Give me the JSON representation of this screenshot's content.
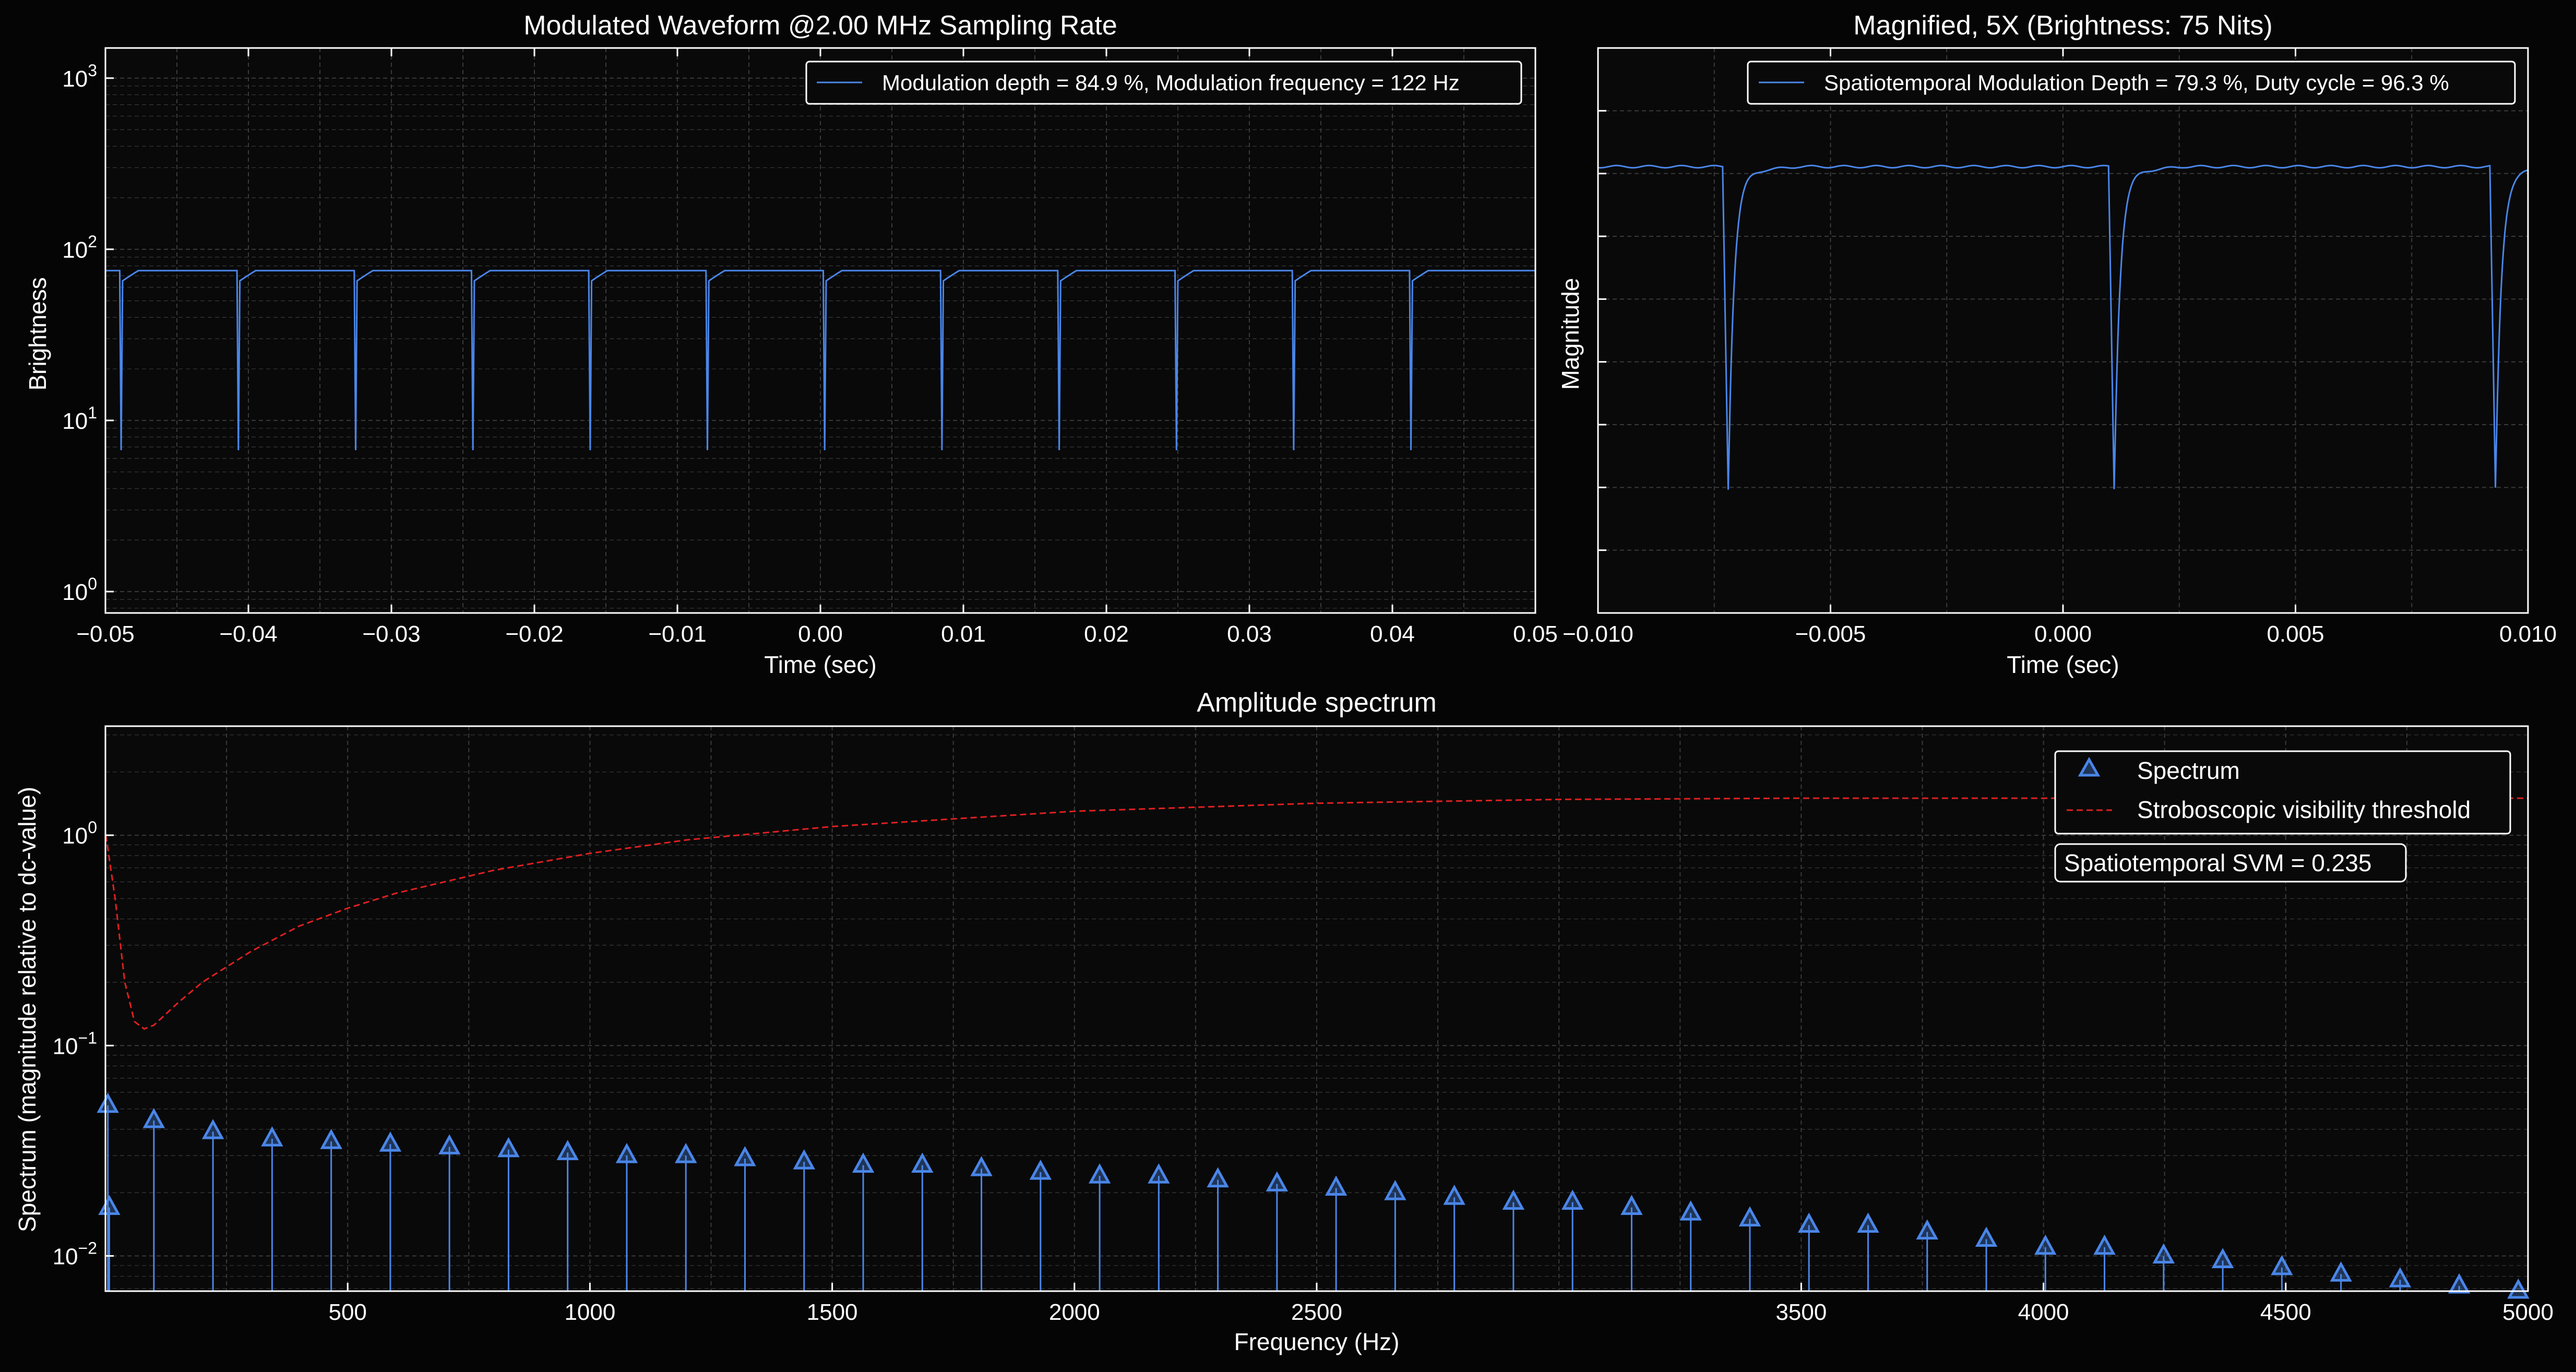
{
  "colors": {
    "background": "#050505",
    "axes_face": "#090909",
    "foreground": "#ffffff",
    "grid": "#3a3a3a",
    "signal": "#4a86e8",
    "threshold": "#e02020"
  },
  "chart_data": [
    {
      "id": "waveform",
      "type": "line",
      "title": "Modulated Waveform @2.00 MHz Sampling Rate",
      "xlabel": "Time (sec)",
      "ylabel": "Brightness",
      "y_scale": "log",
      "xlim": [
        -0.05,
        0.05
      ],
      "ylim": [
        0.75,
        1500
      ],
      "grid": true,
      "legend_placement": "top-right",
      "x_ticks": [
        -0.05,
        -0.04,
        -0.03,
        -0.02,
        -0.01,
        0.0,
        0.01,
        0.02,
        0.03,
        0.04,
        0.05
      ],
      "x_tick_labels": [
        "−0.05",
        "−0.04",
        "−0.03",
        "−0.02",
        "−0.01",
        "0.00",
        "0.01",
        "0.02",
        "0.03",
        "0.04",
        "0.05"
      ],
      "y_ticks": [
        1,
        10,
        100,
        1000
      ],
      "y_tick_labels": [
        "10^0",
        "10^1",
        "10^2",
        "10^3"
      ],
      "series": [
        {
          "name": "Modulation depth = 84.9 %, Modulation frequency = 122 Hz",
          "color": "#4a86e8",
          "baseline": 75,
          "dip_min": 6.7,
          "dip_times": [
            -0.0489,
            -0.0407,
            -0.0325,
            -0.0243,
            -0.0161,
            -0.0079,
            0.0003,
            0.0085,
            0.0167,
            0.0249,
            0.0331,
            0.0413
          ]
        }
      ]
    },
    {
      "id": "magnified",
      "type": "line",
      "title": "Magnified, 5X (Brightness: 75 Nits)",
      "xlabel": "Time (sec)",
      "ylabel": "Magnitude",
      "xlim": [
        -0.01,
        0.01
      ],
      "ylim": [
        0,
        1
      ],
      "grid": true,
      "legend_placement": "top-right",
      "x_ticks": [
        -0.01,
        -0.005,
        0.0,
        0.005,
        0.01
      ],
      "x_tick_labels": [
        "−0.010",
        "−0.005",
        "0.000",
        "0.005",
        "0.010"
      ],
      "series": [
        {
          "name": "Spatiotemporal Modulation Depth = 79.3 %, Duty cycle = 96.3 %",
          "color": "#4a86e8",
          "baseline": 0.79,
          "dip_min": 0.22,
          "dip_times": [
            -0.0072,
            0.0011,
            0.0093
          ]
        }
      ]
    },
    {
      "id": "spectrum",
      "type": "scatter",
      "title": "Amplitude spectrum",
      "xlabel": "Frequency (Hz)",
      "ylabel": "Spectrum (magnitude relative to dc-value)",
      "y_scale": "log",
      "xlim": [
        0,
        5000
      ],
      "ylim": [
        0.0068,
        3.3
      ],
      "grid": true,
      "legend_placement": "top-right",
      "x_ticks": [
        500,
        1000,
        1500,
        2000,
        2500,
        3500,
        4000,
        4500,
        5000
      ],
      "x_tick_labels": [
        "500",
        "1000",
        "1500",
        "2000",
        "2500",
        "3500",
        "4000",
        "4500",
        "5000"
      ],
      "y_ticks": [
        0.01,
        0.1,
        1
      ],
      "y_tick_labels": [
        "10^−2",
        "10^−1",
        "10^0"
      ],
      "annotation": "Spatiotemporal SVM = 0.235",
      "series": [
        {
          "name": "Spectrum",
          "marker": "triangle",
          "color": "#4a86e8",
          "x": [
            8,
            100,
            222,
            344,
            466,
            588,
            710,
            832,
            954,
            1076,
            1198,
            1320,
            1442,
            1564,
            1686,
            1808,
            1930,
            2052,
            2174,
            2296,
            2418,
            2540,
            2662,
            2784,
            2906,
            3028,
            3150,
            3272,
            3394,
            3516,
            3638,
            3760,
            3882,
            4004,
            4126,
            4248,
            4370,
            4492,
            4614,
            4736,
            4858,
            4980
          ],
          "y": [
            0.017,
            0.044,
            0.039,
            0.036,
            0.035,
            0.034,
            0.033,
            0.032,
            0.031,
            0.03,
            0.03,
            0.029,
            0.028,
            0.027,
            0.027,
            0.026,
            0.025,
            0.024,
            0.024,
            0.023,
            0.022,
            0.021,
            0.02,
            0.019,
            0.018,
            0.018,
            0.017,
            0.016,
            0.015,
            0.014,
            0.014,
            0.013,
            0.012,
            0.011,
            0.011,
            0.01,
            0.0095,
            0.0088,
            0.0082,
            0.0077,
            0.0072,
            0.0068
          ]
        },
        {
          "name": "",
          "marker": "triangle",
          "color": "#4a86e8",
          "x": [
            5
          ],
          "y": [
            0.052
          ]
        },
        {
          "name": "Stroboscopic visibility threshold",
          "line_style": "dashed",
          "color": "#e02020",
          "x": [
            1,
            20,
            40,
            60,
            80,
            100,
            150,
            200,
            300,
            400,
            500,
            600,
            800,
            1000,
            1200,
            1500,
            2000,
            2500,
            3000,
            3500,
            4000,
            4500,
            5000
          ],
          "y": [
            1.0,
            0.5,
            0.2,
            0.13,
            0.12,
            0.125,
            0.16,
            0.2,
            0.28,
            0.37,
            0.45,
            0.53,
            0.68,
            0.82,
            0.95,
            1.1,
            1.3,
            1.42,
            1.48,
            1.5,
            1.5,
            1.5,
            1.5
          ]
        }
      ]
    }
  ]
}
